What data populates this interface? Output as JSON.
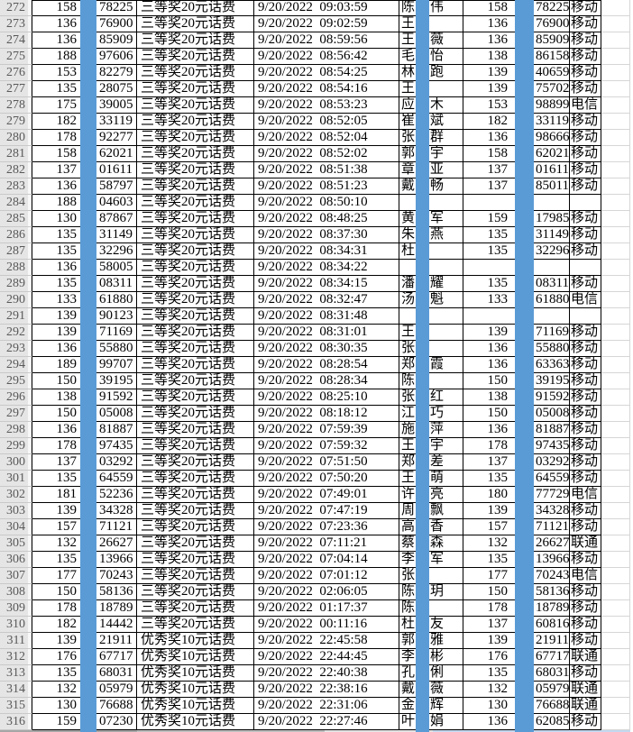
{
  "app": {
    "description": "Excel-style prize winner list with blue redaction bars over phone middle digits and name middle characters"
  },
  "colors": {
    "redaction_bar": "#5b9bd5",
    "gridline": "#000000",
    "row_header_bg": "#e5e5e5",
    "row_header_text": "#595959",
    "outside_gridline": "#d6d6d6"
  },
  "rows": [
    {
      "row": "272",
      "phone1_prefix": "158",
      "phone1_suffix": "78225",
      "prize": "三等奖20元话费",
      "datetime": "9/20/2022  09:03:59",
      "name_first": "陈",
      "name_last": "伟",
      "phone2_prefix": "158",
      "phone2_suffix": "78225",
      "carrier": "移动"
    },
    {
      "row": "273",
      "phone1_prefix": "136",
      "phone1_suffix": "76900",
      "prize": "三等奖20元话费",
      "datetime": "9/20/2022  09:02:59",
      "name_first": "王",
      "name_last": "",
      "phone2_prefix": "136",
      "phone2_suffix": "76900",
      "carrier": "移动"
    },
    {
      "row": "274",
      "phone1_prefix": "136",
      "phone1_suffix": "85909",
      "prize": "三等奖20元话费",
      "datetime": "9/20/2022  08:59:56",
      "name_first": "王",
      "name_last": "薇",
      "phone2_prefix": "136",
      "phone2_suffix": "85909",
      "carrier": "移动"
    },
    {
      "row": "275",
      "phone1_prefix": "188",
      "phone1_suffix": "97606",
      "prize": "三等奖20元话费",
      "datetime": "9/20/2022  08:56:42",
      "name_first": "毛",
      "name_last": "怡",
      "phone2_prefix": "138",
      "phone2_suffix": "86158",
      "carrier": "移动"
    },
    {
      "row": "276",
      "phone1_prefix": "153",
      "phone1_suffix": "82279",
      "prize": "三等奖20元话费",
      "datetime": "9/20/2022  08:54:25",
      "name_first": "林",
      "name_last": "跑",
      "phone2_prefix": "139",
      "phone2_suffix": "40659",
      "carrier": "移动"
    },
    {
      "row": "277",
      "phone1_prefix": "135",
      "phone1_suffix": "28075",
      "prize": "三等奖20元话费",
      "datetime": "9/20/2022  08:54:16",
      "name_first": "王",
      "name_last": "",
      "phone2_prefix": "139",
      "phone2_suffix": "75702",
      "carrier": "移动"
    },
    {
      "row": "278",
      "phone1_prefix": "175",
      "phone1_suffix": "39005",
      "prize": "三等奖20元话费",
      "datetime": "9/20/2022  08:53:23",
      "name_first": "应",
      "name_last": "木",
      "phone2_prefix": "153",
      "phone2_suffix": "98899",
      "carrier": "电信"
    },
    {
      "row": "279",
      "phone1_prefix": "182",
      "phone1_suffix": "33119",
      "prize": "三等奖20元话费",
      "datetime": "9/20/2022  08:52:05",
      "name_first": "崔",
      "name_last": "斌",
      "phone2_prefix": "182",
      "phone2_suffix": "33119",
      "carrier": "移动"
    },
    {
      "row": "280",
      "phone1_prefix": "178",
      "phone1_suffix": "92277",
      "prize": "三等奖20元话费",
      "datetime": "9/20/2022  08:52:04",
      "name_first": "张",
      "name_last": "群",
      "phone2_prefix": "136",
      "phone2_suffix": "98666",
      "carrier": "移动"
    },
    {
      "row": "281",
      "phone1_prefix": "158",
      "phone1_suffix": "62021",
      "prize": "三等奖20元话费",
      "datetime": "9/20/2022  08:52:02",
      "name_first": "郭",
      "name_last": "宇",
      "phone2_prefix": "158",
      "phone2_suffix": "62021",
      "carrier": "移动"
    },
    {
      "row": "282",
      "phone1_prefix": "137",
      "phone1_suffix": "01611",
      "prize": "三等奖20元话费",
      "datetime": "9/20/2022  08:51:38",
      "name_first": "章",
      "name_last": "亚",
      "phone2_prefix": "137",
      "phone2_suffix": "01611",
      "carrier": "移动"
    },
    {
      "row": "283",
      "phone1_prefix": "136",
      "phone1_suffix": "58797",
      "prize": "三等奖20元话费",
      "datetime": "9/20/2022  08:51:23",
      "name_first": "戴",
      "name_last": "畅",
      "phone2_prefix": "137",
      "phone2_suffix": "85011",
      "carrier": "移动"
    },
    {
      "row": "284",
      "phone1_prefix": "188",
      "phone1_suffix": "04603",
      "prize": "三等奖20元话费",
      "datetime": "9/20/2022  08:50:10",
      "name_first": "",
      "name_last": "",
      "phone2_prefix": "",
      "phone2_suffix": "",
      "carrier": ""
    },
    {
      "row": "285",
      "phone1_prefix": "130",
      "phone1_suffix": "87867",
      "prize": "三等奖20元话费",
      "datetime": "9/20/2022  08:48:25",
      "name_first": "黄",
      "name_last": "军",
      "phone2_prefix": "159",
      "phone2_suffix": "17985",
      "carrier": "移动"
    },
    {
      "row": "286",
      "phone1_prefix": "135",
      "phone1_suffix": "31149",
      "prize": "三等奖20元话费",
      "datetime": "9/20/2022  08:37:30",
      "name_first": "朱",
      "name_last": "燕",
      "phone2_prefix": "135",
      "phone2_suffix": "31149",
      "carrier": "移动"
    },
    {
      "row": "287",
      "phone1_prefix": "135",
      "phone1_suffix": "32296",
      "prize": "三等奖20元话费",
      "datetime": "9/20/2022  08:34:31",
      "name_first": "杜",
      "name_last": "",
      "phone2_prefix": "135",
      "phone2_suffix": "32296",
      "carrier": "移动"
    },
    {
      "row": "288",
      "phone1_prefix": "136",
      "phone1_suffix": "58005",
      "prize": "三等奖20元话费",
      "datetime": "9/20/2022  08:34:22",
      "name_first": "",
      "name_last": "",
      "phone2_prefix": "",
      "phone2_suffix": "",
      "carrier": ""
    },
    {
      "row": "289",
      "phone1_prefix": "135",
      "phone1_suffix": "08311",
      "prize": "三等奖20元话费",
      "datetime": "9/20/2022  08:34:15",
      "name_first": "潘",
      "name_last": "耀",
      "phone2_prefix": "135",
      "phone2_suffix": "08311",
      "carrier": "移动"
    },
    {
      "row": "290",
      "phone1_prefix": "133",
      "phone1_suffix": "61880",
      "prize": "三等奖20元话费",
      "datetime": "9/20/2022  08:32:47",
      "name_first": "汤",
      "name_last": "魁",
      "phone2_prefix": "133",
      "phone2_suffix": "61880",
      "carrier": "电信"
    },
    {
      "row": "291",
      "phone1_prefix": "139",
      "phone1_suffix": "90123",
      "prize": "三等奖20元话费",
      "datetime": "9/20/2022  08:31:48",
      "name_first": "",
      "name_last": "",
      "phone2_prefix": "",
      "phone2_suffix": "",
      "carrier": ""
    },
    {
      "row": "292",
      "phone1_prefix": "139",
      "phone1_suffix": "71169",
      "prize": "三等奖20元话费",
      "datetime": "9/20/2022  08:31:01",
      "name_first": "王",
      "name_last": "",
      "phone2_prefix": "139",
      "phone2_suffix": "71169",
      "carrier": "移动"
    },
    {
      "row": "293",
      "phone1_prefix": "136",
      "phone1_suffix": "55880",
      "prize": "三等奖20元话费",
      "datetime": "9/20/2022  08:30:35",
      "name_first": "张",
      "name_last": "",
      "phone2_prefix": "136",
      "phone2_suffix": "55880",
      "carrier": "移动"
    },
    {
      "row": "294",
      "phone1_prefix": "189",
      "phone1_suffix": "99707",
      "prize": "三等奖20元话费",
      "datetime": "9/20/2022  08:28:54",
      "name_first": "郑",
      "name_last": "霞",
      "phone2_prefix": "136",
      "phone2_suffix": "63363",
      "carrier": "移动"
    },
    {
      "row": "295",
      "phone1_prefix": "150",
      "phone1_suffix": "39195",
      "prize": "三等奖20元话费",
      "datetime": "9/20/2022  08:28:34",
      "name_first": "陈",
      "name_last": "",
      "phone2_prefix": "150",
      "phone2_suffix": "39195",
      "carrier": "移动"
    },
    {
      "row": "296",
      "phone1_prefix": "138",
      "phone1_suffix": "91592",
      "prize": "三等奖20元话费",
      "datetime": "9/20/2022  08:25:10",
      "name_first": "张",
      "name_last": "红",
      "phone2_prefix": "138",
      "phone2_suffix": "91592",
      "carrier": "移动"
    },
    {
      "row": "297",
      "phone1_prefix": "150",
      "phone1_suffix": "05008",
      "prize": "三等奖20元话费",
      "datetime": "9/20/2022  08:18:12",
      "name_first": "江",
      "name_last": "巧",
      "phone2_prefix": "150",
      "phone2_suffix": "05008",
      "carrier": "移动"
    },
    {
      "row": "298",
      "phone1_prefix": "136",
      "phone1_suffix": "81887",
      "prize": "三等奖20元话费",
      "datetime": "9/20/2022  07:59:39",
      "name_first": "施",
      "name_last": "萍",
      "phone2_prefix": "136",
      "phone2_suffix": "81887",
      "carrier": "移动"
    },
    {
      "row": "299",
      "phone1_prefix": "178",
      "phone1_suffix": "97435",
      "prize": "三等奖20元话费",
      "datetime": "9/20/2022  07:59:32",
      "name_first": "王",
      "name_last": "宇",
      "phone2_prefix": "178",
      "phone2_suffix": "97435",
      "carrier": "移动"
    },
    {
      "row": "300",
      "phone1_prefix": "137",
      "phone1_suffix": "03292",
      "prize": "三等奖20元话费",
      "datetime": "9/20/2022  07:51:50",
      "name_first": "郑",
      "name_last": "差",
      "phone2_prefix": "137",
      "phone2_suffix": "03292",
      "carrier": "移动"
    },
    {
      "row": "301",
      "phone1_prefix": "135",
      "phone1_suffix": "64559",
      "prize": "三等奖20元话费",
      "datetime": "9/20/2022  07:50:20",
      "name_first": "王",
      "name_last": "萌",
      "phone2_prefix": "135",
      "phone2_suffix": "64559",
      "carrier": "移动"
    },
    {
      "row": "302",
      "phone1_prefix": "181",
      "phone1_suffix": "52236",
      "prize": "三等奖20元话费",
      "datetime": "9/20/2022  07:49:01",
      "name_first": "许",
      "name_last": "亮",
      "phone2_prefix": "180",
      "phone2_suffix": "77729",
      "carrier": "电信"
    },
    {
      "row": "303",
      "phone1_prefix": "139",
      "phone1_suffix": "34328",
      "prize": "三等奖20元话费",
      "datetime": "9/20/2022  07:47:19",
      "name_first": "周",
      "name_last": "飘",
      "phone2_prefix": "139",
      "phone2_suffix": "34328",
      "carrier": "移动"
    },
    {
      "row": "304",
      "phone1_prefix": "157",
      "phone1_suffix": "71121",
      "prize": "三等奖20元话费",
      "datetime": "9/20/2022  07:23:36",
      "name_first": "高",
      "name_last": "香",
      "phone2_prefix": "157",
      "phone2_suffix": "71121",
      "carrier": "移动"
    },
    {
      "row": "305",
      "phone1_prefix": "132",
      "phone1_suffix": "26627",
      "prize": "三等奖20元话费",
      "datetime": "9/20/2022  07:11:21",
      "name_first": "蔡",
      "name_last": "森",
      "phone2_prefix": "132",
      "phone2_suffix": "26627",
      "carrier": "联通"
    },
    {
      "row": "306",
      "phone1_prefix": "135",
      "phone1_suffix": "13966",
      "prize": "三等奖20元话费",
      "datetime": "9/20/2022  07:04:14",
      "name_first": "李",
      "name_last": "军",
      "phone2_prefix": "135",
      "phone2_suffix": "13966",
      "carrier": "移动"
    },
    {
      "row": "307",
      "phone1_prefix": "177",
      "phone1_suffix": "70243",
      "prize": "三等奖20元话费",
      "datetime": "9/20/2022  07:01:12",
      "name_first": "张",
      "name_last": "",
      "phone2_prefix": "177",
      "phone2_suffix": "70243",
      "carrier": "电信"
    },
    {
      "row": "308",
      "phone1_prefix": "150",
      "phone1_suffix": "58136",
      "prize": "三等奖20元话费",
      "datetime": "9/20/2022  02:06:05",
      "name_first": "陈",
      "name_last": "玥",
      "phone2_prefix": "150",
      "phone2_suffix": "58136",
      "carrier": "移动"
    },
    {
      "row": "309",
      "phone1_prefix": "178",
      "phone1_suffix": "18789",
      "prize": "三等奖20元话费",
      "datetime": "9/20/2022  01:17:37",
      "name_first": "陈",
      "name_last": "",
      "phone2_prefix": "178",
      "phone2_suffix": "18789",
      "carrier": "移动"
    },
    {
      "row": "310",
      "phone1_prefix": "182",
      "phone1_suffix": "14442",
      "prize": "三等奖20元话费",
      "datetime": "9/20/2022  00:11:16",
      "name_first": "杜",
      "name_last": "友",
      "phone2_prefix": "137",
      "phone2_suffix": "60816",
      "carrier": "移动"
    },
    {
      "row": "311",
      "phone1_prefix": "139",
      "phone1_suffix": "21911",
      "prize": "优秀奖10元话费",
      "datetime": "9/20/2022  22:45:58",
      "name_first": "郭",
      "name_last": "雅",
      "phone2_prefix": "139",
      "phone2_suffix": "21911",
      "carrier": "移动"
    },
    {
      "row": "312",
      "phone1_prefix": "176",
      "phone1_suffix": "67717",
      "prize": "优秀奖10元话费",
      "datetime": "9/20/2022  22:44:45",
      "name_first": "李",
      "name_last": "彬",
      "phone2_prefix": "176",
      "phone2_suffix": "67717",
      "carrier": "联通"
    },
    {
      "row": "313",
      "phone1_prefix": "135",
      "phone1_suffix": "68031",
      "prize": "优秀奖10元话费",
      "datetime": "9/20/2022  22:40:38",
      "name_first": "孔",
      "name_last": "俐",
      "phone2_prefix": "135",
      "phone2_suffix": "68031",
      "carrier": "移动"
    },
    {
      "row": "314",
      "phone1_prefix": "132",
      "phone1_suffix": "05979",
      "prize": "优秀奖10元话费",
      "datetime": "9/20/2022  22:38:16",
      "name_first": "戴",
      "name_last": "薇",
      "phone2_prefix": "132",
      "phone2_suffix": "05979",
      "carrier": "联通"
    },
    {
      "row": "315",
      "phone1_prefix": "130",
      "phone1_suffix": "76688",
      "prize": "优秀奖10元话费",
      "datetime": "9/20/2022  22:31:06",
      "name_first": "金",
      "name_last": "辉",
      "phone2_prefix": "130",
      "phone2_suffix": "76688",
      "carrier": "联通"
    },
    {
      "row": "316",
      "phone1_prefix": "159",
      "phone1_suffix": "07230",
      "prize": "优秀奖10元话费",
      "datetime": "9/20/2022  22:27:46",
      "name_first": "叶",
      "name_last": "娟",
      "phone2_prefix": "136",
      "phone2_suffix": "62085",
      "carrier": "移动"
    }
  ]
}
